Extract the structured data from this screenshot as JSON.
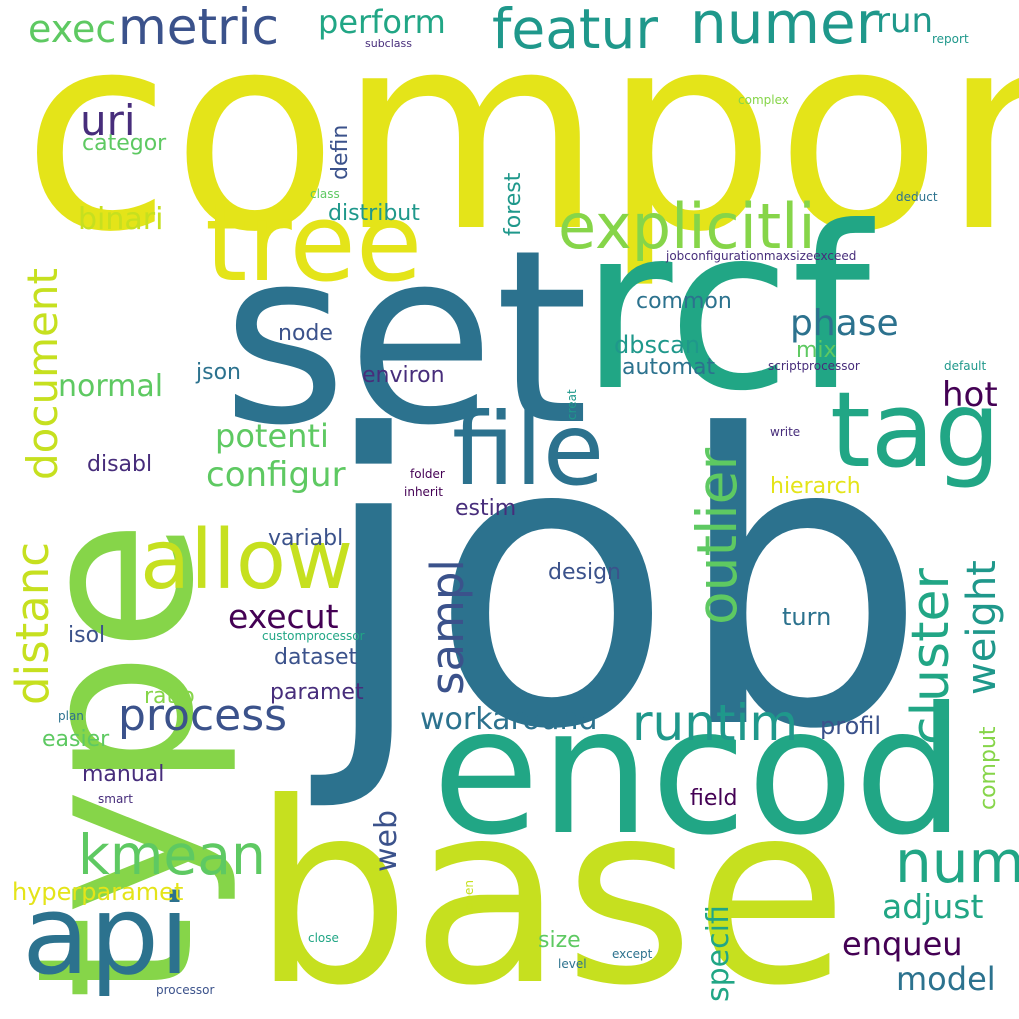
{
  "colors": {
    "yellow": "#e4e419",
    "lime": "#c6e01f",
    "green": "#86d549",
    "lightgreen": "#5ec962",
    "teal": "#21a685",
    "tealblue": "#1f988b",
    "blue": "#2c728e",
    "darkblue": "#3b528b",
    "indigo": "#472d7b",
    "purple": "#440154",
    "background": "#ffffff"
  },
  "words": [
    {
      "text": "compon",
      "color": "#e4e419"
    },
    {
      "text": "job",
      "color": "#2c728e"
    },
    {
      "text": "set",
      "color": "#2c728e"
    },
    {
      "text": "type",
      "color": "#86d549"
    },
    {
      "text": "rcf",
      "color": "#21a685"
    },
    {
      "text": "base",
      "color": "#c6e01f"
    },
    {
      "text": "encod",
      "color": "#21a685"
    },
    {
      "text": "tree",
      "color": "#e4e419"
    },
    {
      "text": "file",
      "color": "#2c728e"
    },
    {
      "text": "tag",
      "color": "#21a685"
    },
    {
      "text": "api",
      "color": "#2c728e"
    },
    {
      "text": "allow",
      "color": "#c6e01f"
    },
    {
      "text": "explicitli",
      "color": "#86d549"
    },
    {
      "text": "featur",
      "color": "#1f988b"
    },
    {
      "text": "numer",
      "color": "#1f988b"
    },
    {
      "text": "metric",
      "color": "#3b528b"
    },
    {
      "text": "process",
      "color": "#3b528b"
    },
    {
      "text": "runtim",
      "color": "#1f988b"
    },
    {
      "text": "kmean",
      "color": "#5ec962"
    },
    {
      "text": "num",
      "color": "#21a685"
    },
    {
      "text": "outlier",
      "color": "#5ec962"
    },
    {
      "text": "cluster",
      "color": "#21a685"
    },
    {
      "text": "sampl",
      "color": "#3b528b"
    },
    {
      "text": "weight",
      "color": "#1f988b"
    },
    {
      "text": "distanc",
      "color": "#c6e01f"
    },
    {
      "text": "document",
      "color": "#c6e01f"
    },
    {
      "text": "uri",
      "color": "#472d7b"
    },
    {
      "text": "exec",
      "color": "#5ec962"
    },
    {
      "text": "perform",
      "color": "#21a685"
    },
    {
      "text": "run",
      "color": "#1f988b"
    },
    {
      "text": "phase",
      "color": "#2c728e"
    },
    {
      "text": "execut",
      "color": "#440154"
    },
    {
      "text": "configur",
      "color": "#5ec962"
    },
    {
      "text": "potenti",
      "color": "#5ec962"
    },
    {
      "text": "hot",
      "color": "#440154"
    },
    {
      "text": "workaround",
      "color": "#2c728e"
    },
    {
      "text": "enqueu",
      "color": "#440154"
    },
    {
      "text": "adjust",
      "color": "#21a685"
    },
    {
      "text": "model",
      "color": "#2c728e"
    },
    {
      "text": "specifi",
      "color": "#21a685"
    },
    {
      "text": "web",
      "color": "#3b528b"
    },
    {
      "text": "normal",
      "color": "#5ec962"
    },
    {
      "text": "binari",
      "color": "#c6e01f"
    },
    {
      "text": "categor",
      "color": "#5ec962"
    },
    {
      "text": "hyperparamet",
      "color": "#e4e419"
    },
    {
      "text": "forest",
      "color": "#1f988b"
    },
    {
      "text": "defin",
      "color": "#3b528b"
    },
    {
      "text": "distribut",
      "color": "#1f988b"
    },
    {
      "text": "common",
      "color": "#2c728e"
    },
    {
      "text": "dbscan",
      "color": "#1f988b"
    },
    {
      "text": "mix",
      "color": "#5ec962"
    },
    {
      "text": "automat",
      "color": "#2c728e"
    },
    {
      "text": "node",
      "color": "#3b528b"
    },
    {
      "text": "json",
      "color": "#2c728e"
    },
    {
      "text": "environ",
      "color": "#472d7b"
    },
    {
      "text": "disabl",
      "color": "#472d7b"
    },
    {
      "text": "estim",
      "color": "#472d7b"
    },
    {
      "text": "variabl",
      "color": "#3b528b"
    },
    {
      "text": "hierarch",
      "color": "#e4e419"
    },
    {
      "text": "design",
      "color": "#3b528b"
    },
    {
      "text": "dataset",
      "color": "#3b528b"
    },
    {
      "text": "isol",
      "color": "#3b528b"
    },
    {
      "text": "paramet",
      "color": "#472d7b"
    },
    {
      "text": "ratio",
      "color": "#86d549"
    },
    {
      "text": "easier",
      "color": "#5ec962"
    },
    {
      "text": "manual",
      "color": "#472d7b"
    },
    {
      "text": "turn",
      "color": "#2c728e"
    },
    {
      "text": "profil",
      "color": "#3b528b"
    },
    {
      "text": "field",
      "color": "#440154"
    },
    {
      "text": "comput",
      "color": "#86d549"
    },
    {
      "text": "size",
      "color": "#5ec962"
    },
    {
      "text": "subclass",
      "color": "#472d7b"
    },
    {
      "text": "report",
      "color": "#1f988b"
    },
    {
      "text": "complex",
      "color": "#86d549"
    },
    {
      "text": "class",
      "color": "#5ec962"
    },
    {
      "text": "deduct",
      "color": "#2c728e"
    },
    {
      "text": "jobconfigurationmaxsizeexceed",
      "color": "#472d7b"
    },
    {
      "text": "scriptprocessor",
      "color": "#472d7b"
    },
    {
      "text": "default",
      "color": "#1f988b"
    },
    {
      "text": "creat",
      "color": "#1f988b"
    },
    {
      "text": "write",
      "color": "#472d7b"
    },
    {
      "text": "folder",
      "color": "#440154"
    },
    {
      "text": "inherit",
      "color": "#440154"
    },
    {
      "text": "customprocessor",
      "color": "#21a685"
    },
    {
      "text": "plan",
      "color": "#2c728e"
    },
    {
      "text": "smart",
      "color": "#472d7b"
    },
    {
      "text": "open",
      "color": "#c6e01f"
    },
    {
      "text": "close",
      "color": "#21a685"
    },
    {
      "text": "except",
      "color": "#2c728e"
    },
    {
      "text": "level",
      "color": "#2c728e"
    },
    {
      "text": "processor",
      "color": "#3b528b"
    }
  ]
}
